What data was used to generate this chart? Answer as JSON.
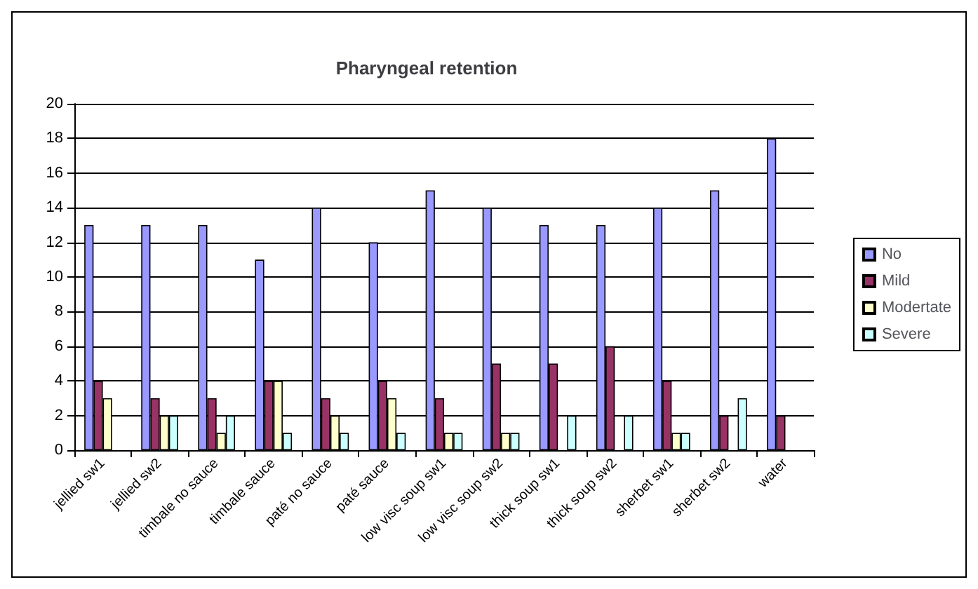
{
  "chart_data": {
    "type": "bar",
    "title": "Pharyngeal retention",
    "categories": [
      "jellied sw1",
      "jellied sw2",
      "timbale no sauce",
      "timbale sauce",
      "paté no sauce",
      "paté sauce",
      "low visc soup sw1",
      "low visc soup sw2",
      "thick soup sw1",
      "thick soup sw2",
      "sherbet sw1",
      "sherbet sw2",
      "water"
    ],
    "series": [
      {
        "name": "No",
        "color": "#9999ff",
        "values": [
          13,
          13,
          13,
          11,
          14,
          12,
          15,
          14,
          13,
          13,
          14,
          15,
          18
        ]
      },
      {
        "name": "Mild",
        "color": "#993366",
        "values": [
          4,
          3,
          3,
          4,
          3,
          4,
          3,
          5,
          5,
          6,
          4,
          2,
          2
        ]
      },
      {
        "name": "Modertate",
        "color": "#ffffcc",
        "values": [
          3,
          2,
          1,
          4,
          2,
          3,
          1,
          1,
          0,
          0,
          1,
          0,
          0
        ]
      },
      {
        "name": "Severe",
        "color": "#ccffff",
        "values": [
          0,
          2,
          2,
          1,
          1,
          1,
          1,
          1,
          2,
          2,
          1,
          3,
          0
        ]
      }
    ],
    "ylim": [
      0,
      20
    ],
    "yticks": [
      0,
      2,
      4,
      6,
      8,
      10,
      12,
      14,
      16,
      18,
      20
    ],
    "grid": "y",
    "legend": "right"
  }
}
